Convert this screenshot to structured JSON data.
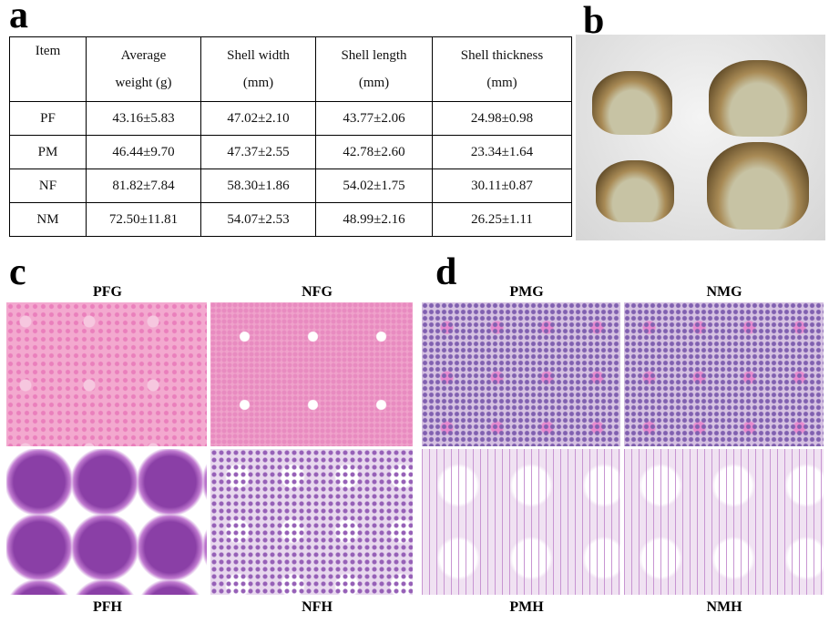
{
  "panel_labels": {
    "a": "a",
    "b": "b",
    "c": "c",
    "d": "d"
  },
  "table": {
    "headers": [
      [
        "Item",
        ""
      ],
      [
        "Average",
        "weight (g)"
      ],
      [
        "Shell width",
        "(mm)"
      ],
      [
        "Shell length",
        "(mm)"
      ],
      [
        "Shell thickness",
        "(mm)"
      ]
    ],
    "rows": [
      [
        "PF",
        "43.16±5.83",
        "47.02±2.10",
        "43.77±2.06",
        "24.98±0.98"
      ],
      [
        "PM",
        "46.44±9.70",
        "47.37±2.55",
        "42.78±2.60",
        "23.34±1.64"
      ],
      [
        "NF",
        "81.82±7.84",
        "58.30±1.86",
        "54.02±1.75",
        "30.11±0.87"
      ],
      [
        "NM",
        "72.50±11.81",
        "54.07±2.53",
        "48.99±2.16",
        "26.25±1.11"
      ]
    ]
  },
  "micrographs": {
    "PFG": "PFG",
    "NFG": "NFG",
    "PMG": "PMG",
    "NMG": "NMG",
    "PFH": "PFH",
    "NFH": "NFH",
    "PMH": "PMH",
    "NMH": "NMH"
  }
}
